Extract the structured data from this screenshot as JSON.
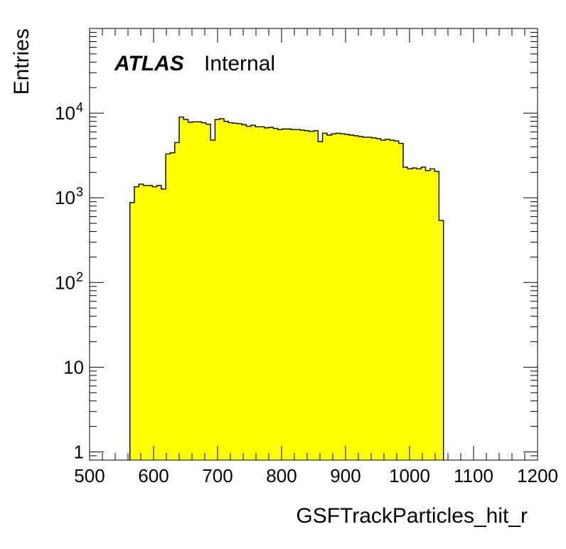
{
  "chart_data": {
    "type": "histogram",
    "xlabel": "GSFTrackParticles_hit_r",
    "ylabel": "Entries",
    "xlim": [
      500,
      1200
    ],
    "ylim": [
      0.8,
      100000
    ],
    "yscale": "log",
    "grid": false,
    "legend": "none",
    "x_ticks": [
      "500",
      "600",
      "700",
      "800",
      "900",
      "1000",
      "1100",
      "1200"
    ],
    "y_ticks": [
      {
        "value": 1,
        "label": "1"
      },
      {
        "value": 10,
        "label": "10"
      },
      {
        "value": 100,
        "label": "10",
        "exp": "2"
      },
      {
        "value": 1000,
        "label": "10",
        "exp": "3"
      },
      {
        "value": 10000,
        "label": "10",
        "exp": "4"
      }
    ],
    "bin_width": 7,
    "bin_edges_start": 563,
    "values": [
      880,
      1350,
      1450,
      1400,
      1400,
      1350,
      1400,
      1270,
      3300,
      3400,
      4500,
      9000,
      8400,
      7800,
      7900,
      7900,
      7700,
      7400,
      4800,
      8400,
      8600,
      8000,
      7700,
      7600,
      7500,
      7300,
      7000,
      7200,
      6900,
      6900,
      6700,
      6800,
      6600,
      6400,
      6500,
      6500,
      6400,
      6400,
      6300,
      6200,
      6100,
      6200,
      4600,
      5800,
      5500,
      5700,
      5800,
      5700,
      5600,
      5500,
      5400,
      5300,
      5200,
      5200,
      5100,
      5000,
      4800,
      4900,
      4800,
      4700,
      4400,
      2300,
      2200,
      2250,
      2200,
      2300,
      2100,
      2200,
      2050,
      540
    ],
    "fill_color": "#ffff00",
    "line_color": "#000000",
    "labels": {
      "atlas": "ATLAS",
      "internal": "Internal"
    }
  }
}
